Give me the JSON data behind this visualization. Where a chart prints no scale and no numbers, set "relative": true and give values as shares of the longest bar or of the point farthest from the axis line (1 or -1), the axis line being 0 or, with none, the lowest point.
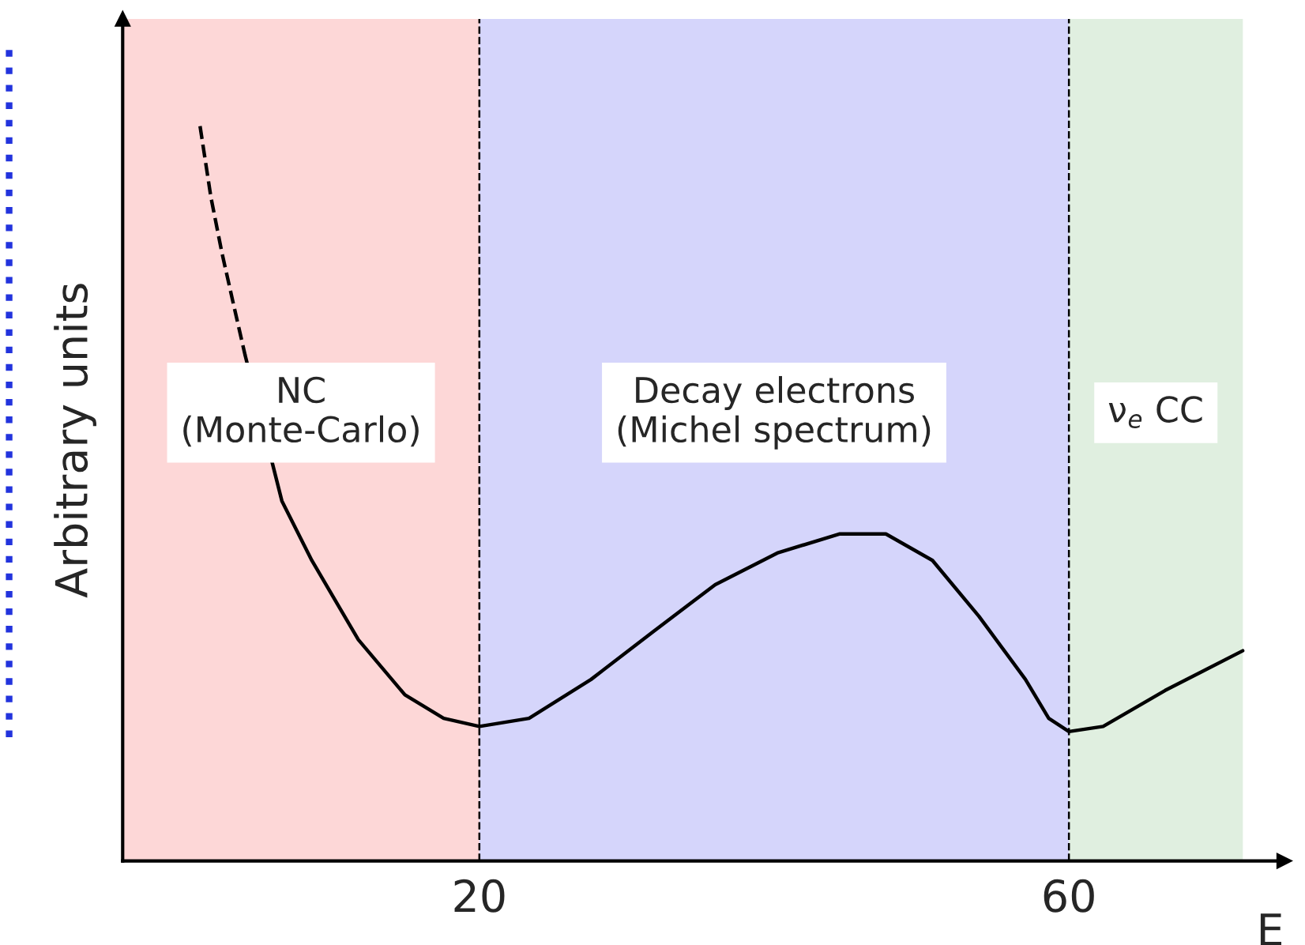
{
  "chart_data": {
    "type": "line",
    "relative": true,
    "xlabel": "E",
    "ylabel": "Arbitrary units",
    "xlim": [
      -4.2,
      74.6
    ],
    "xticks": [
      20,
      60
    ],
    "tick_labels": "x",
    "grid": false,
    "legend": false,
    "bands": [
      {
        "axis": "x",
        "from": -4.2,
        "to": 20,
        "label": "NC\n(Monte-Carlo)",
        "color": "#fdd7d7"
      },
      {
        "axis": "x",
        "from": 20,
        "to": 60,
        "label": "Decay electrons\n(Michel spectrum)",
        "color": "#d5d5fb"
      },
      {
        "axis": "x",
        "from": 60,
        "to": 71.8,
        "label": "ν$_{e}$ CC",
        "color": "#e0efe0"
      }
    ],
    "ref_lines": [
      {
        "axis": "x",
        "value": 20,
        "color": "#000000",
        "line_style": "dashed"
      },
      {
        "axis": "x",
        "value": 60,
        "color": "#000000",
        "line_style": "dashed"
      }
    ],
    "series": [
      {
        "color": "#000000",
        "line_style": "dashed",
        "x": [
          1.05,
          1.79,
          2.53,
          3.37,
          4.11
        ],
        "values": [
          1.0,
          0.903,
          0.828,
          0.753,
          0.688
        ]
      },
      {
        "color": "#000000",
        "line_style": "solid",
        "x": [
          4.11,
          6.6,
          8.63,
          11.79,
          14.95,
          17.58,
          20,
          23.37,
          27.58,
          31.79,
          36.0,
          40.21,
          44.42,
          47.58,
          50.74,
          53.89,
          57.05,
          58.63,
          60,
          62.32,
          66.53,
          71.79
        ],
        "values": [
          0.688,
          0.49,
          0.409,
          0.301,
          0.226,
          0.194,
          0.183,
          0.194,
          0.247,
          0.312,
          0.376,
          0.419,
          0.445,
          0.445,
          0.409,
          0.333,
          0.247,
          0.194,
          0.176,
          0.183,
          0.232,
          0.286
        ]
      }
    ]
  }
}
